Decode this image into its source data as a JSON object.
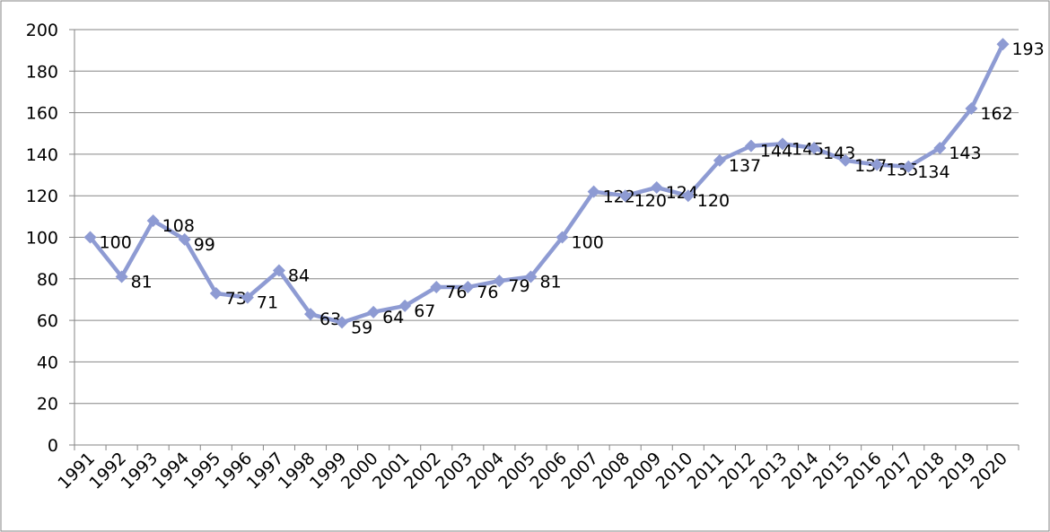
{
  "chart_data": {
    "type": "line",
    "categories": [
      "1991",
      "1992",
      "1993",
      "1994",
      "1995",
      "1996",
      "1997",
      "1998",
      "1999",
      "2000",
      "2001",
      "2002",
      "2003",
      "2004",
      "2005",
      "2006",
      "2007",
      "2008",
      "2009",
      "2010",
      "2011",
      "2012",
      "2013",
      "2014",
      "2015",
      "2016",
      "2017",
      "2018",
      "2019",
      "2020"
    ],
    "values": [
      100,
      81,
      108,
      99,
      73,
      71,
      84,
      63,
      59,
      64,
      67,
      76,
      76,
      79,
      81,
      100,
      122,
      120,
      124,
      120,
      137,
      144,
      145,
      143,
      137,
      135,
      134,
      143,
      162,
      193
    ],
    "color": "#8e9bd3",
    "ylim": [
      0,
      200
    ],
    "yticks": [
      0,
      20,
      40,
      60,
      80,
      100,
      120,
      140,
      160,
      180,
      200
    ],
    "grid": true
  }
}
